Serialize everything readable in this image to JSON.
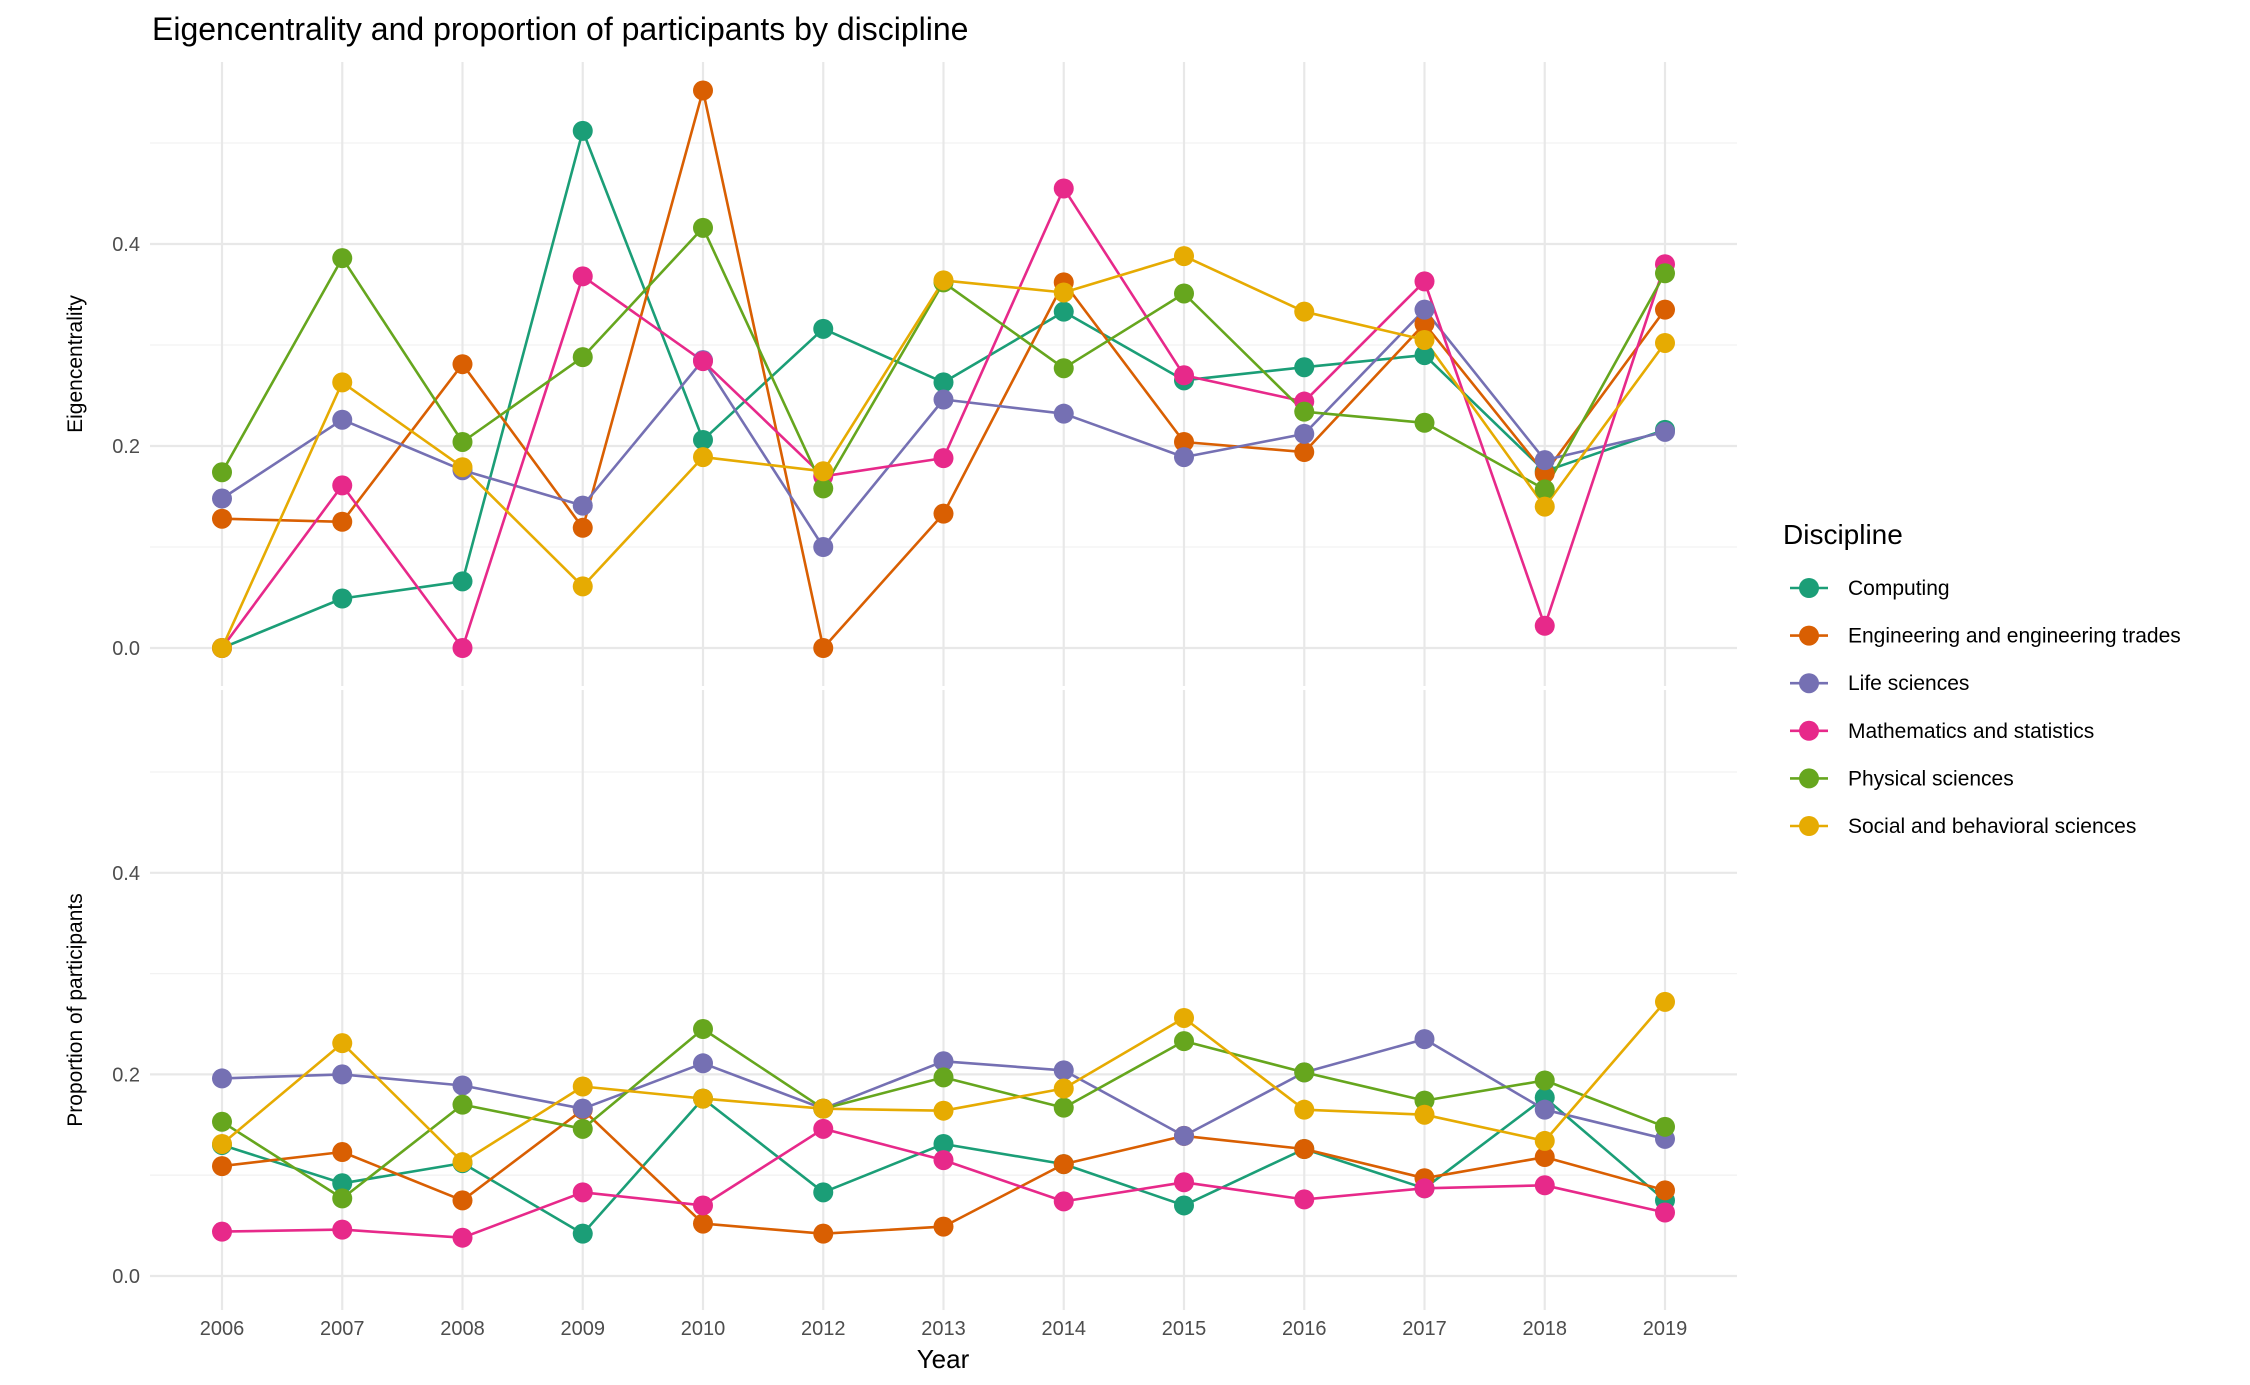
{
  "chart_data": {
    "type": "line",
    "title": "Eigencentrality and proportion of participants by discipline",
    "xlabel": "Year",
    "categories": [
      "2006",
      "2007",
      "2008",
      "2009",
      "2010",
      "2012",
      "2013",
      "2014",
      "2015",
      "2016",
      "2017",
      "2018",
      "2019"
    ],
    "legend": {
      "title": "Discipline",
      "placement": "right"
    },
    "grid": true,
    "series": [
      {
        "name": "Computing",
        "color": "#1B9E77"
      },
      {
        "name": "Engineering and engineering trades",
        "color": "#D95F02"
      },
      {
        "name": "Life sciences",
        "color": "#7570B3"
      },
      {
        "name": "Mathematics and statistics",
        "color": "#E7298A"
      },
      {
        "name": "Physical sciences",
        "color": "#66A61E"
      },
      {
        "name": "Social and behavioral sciences",
        "color": "#E6AB02"
      }
    ],
    "panels": [
      {
        "ylabel": "Eigencentrality",
        "ylim": [
          0,
          0.55
        ],
        "yticks": [
          0.0,
          0.2,
          0.4
        ],
        "ytick_labels": [
          "0.0",
          "0.2",
          "0.4"
        ],
        "values": [
          [
            0.0,
            0.049,
            0.066,
            0.512,
            0.206,
            0.316,
            0.263,
            0.333,
            0.265,
            0.278,
            0.29,
            0.175,
            0.216
          ],
          [
            0.128,
            0.125,
            0.281,
            0.119,
            0.552,
            0.0,
            0.133,
            0.362,
            0.204,
            0.194,
            0.321,
            0.173,
            0.335
          ],
          [
            0.148,
            0.226,
            0.176,
            0.141,
            0.285,
            0.1,
            0.246,
            0.232,
            0.189,
            0.212,
            0.335,
            0.186,
            0.214
          ],
          [
            0.0,
            0.161,
            0.0,
            0.368,
            0.284,
            0.17,
            0.188,
            0.455,
            0.27,
            0.244,
            0.363,
            0.022,
            0.38
          ],
          [
            0.174,
            0.386,
            0.204,
            0.288,
            0.416,
            0.158,
            0.362,
            0.277,
            0.351,
            0.234,
            0.223,
            0.157,
            0.371
          ],
          [
            0.0,
            0.263,
            0.179,
            0.061,
            0.189,
            0.175,
            0.364,
            0.352,
            0.388,
            0.333,
            0.305,
            0.14,
            0.302
          ]
        ]
      },
      {
        "ylabel": "Proportion of participants",
        "ylim": [
          0,
          0.55
        ],
        "yticks": [
          0.0,
          0.2,
          0.4
        ],
        "ytick_labels": [
          "0.0",
          "0.2",
          "0.4"
        ],
        "values": [
          [
            0.13,
            0.092,
            0.112,
            0.042,
            0.176,
            0.083,
            0.131,
            0.111,
            0.07,
            0.126,
            0.087,
            0.177,
            0.075
          ],
          [
            0.109,
            0.123,
            0.075,
            0.165,
            0.052,
            0.042,
            0.049,
            0.111,
            0.139,
            0.126,
            0.097,
            0.118,
            0.085
          ],
          [
            0.196,
            0.2,
            0.189,
            0.166,
            0.211,
            0.166,
            0.213,
            0.204,
            0.139,
            0.202,
            0.235,
            0.165,
            0.136
          ],
          [
            0.044,
            0.046,
            0.038,
            0.083,
            0.07,
            0.146,
            0.115,
            0.074,
            0.093,
            0.076,
            0.087,
            0.09,
            0.063
          ],
          [
            0.153,
            0.077,
            0.17,
            0.146,
            0.245,
            0.166,
            0.197,
            0.167,
            0.233,
            0.202,
            0.174,
            0.194,
            0.148
          ],
          [
            0.131,
            0.231,
            0.113,
            0.188,
            0.176,
            0.166,
            0.164,
            0.186,
            0.256,
            0.165,
            0.16,
            0.134,
            0.272
          ]
        ]
      }
    ]
  }
}
